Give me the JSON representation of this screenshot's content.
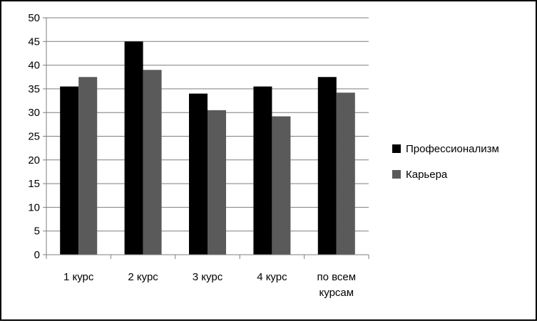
{
  "chart_data": {
    "type": "bar",
    "title": "",
    "xlabel": "",
    "ylabel": "",
    "categories": [
      [
        "1 курс"
      ],
      [
        "2 курс"
      ],
      [
        "3 курс"
      ],
      [
        "4 курс"
      ],
      [
        "по всем",
        "курсам"
      ]
    ],
    "series": [
      {
        "name": "Профессионализм",
        "values": [
          35.5,
          45,
          34,
          35.5,
          37.5
        ],
        "color": "#000000"
      },
      {
        "name": "Карьера",
        "values": [
          37.5,
          39,
          30.5,
          29.2,
          34.2
        ],
        "color": "#5a5a5a"
      }
    ],
    "ylim": [
      0,
      50
    ],
    "yticks": [
      0,
      5,
      10,
      15,
      20,
      25,
      30,
      35,
      40,
      45,
      50
    ],
    "grid": true,
    "legend_position": "right"
  }
}
